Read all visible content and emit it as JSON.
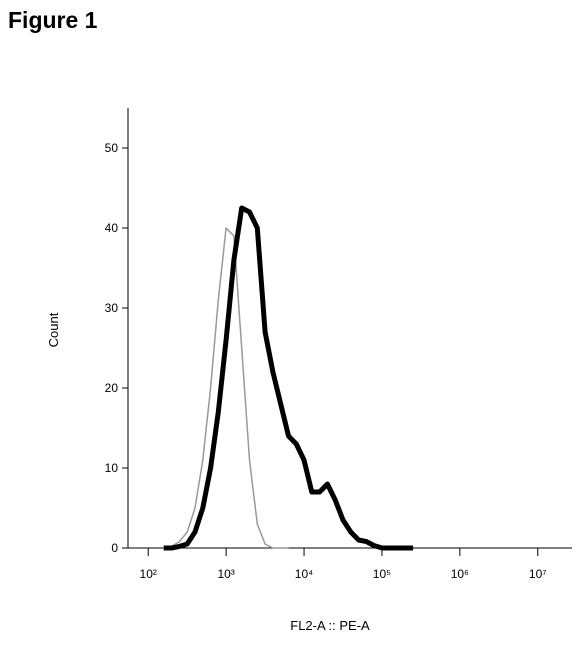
{
  "title": "Figure 1",
  "chart_data": {
    "type": "line",
    "xlabel": "FL2-A :: PE-A",
    "ylabel": "Count",
    "xscale": "log",
    "xlim": [
      55,
      27500000
    ],
    "ylim": [
      0,
      55
    ],
    "xticks": [
      {
        "value": 100,
        "label": "10²"
      },
      {
        "value": 1000,
        "label": "10³"
      },
      {
        "value": 10000,
        "label": "10⁴"
      },
      {
        "value": 100000,
        "label": "10⁵"
      },
      {
        "value": 1000000,
        "label": "10⁶"
      },
      {
        "value": 10000000,
        "label": "10⁷"
      }
    ],
    "yticks": [
      0,
      10,
      20,
      30,
      40,
      50
    ],
    "x": [
      158,
      200,
      251,
      316,
      398,
      501,
      631,
      794,
      1000,
      1259,
      1585,
      1995,
      2512,
      3162,
      3981,
      5012,
      6310,
      7943,
      10000,
      12589,
      15849,
      19953,
      25119,
      31623,
      39811,
      50119,
      63096,
      79433,
      100000,
      125893,
      158489,
      251189
    ],
    "series": [
      {
        "color": "#999999",
        "width": 1.5,
        "values": [
          0,
          0.2,
          0.8,
          2,
          5,
          11,
          20,
          31,
          40,
          39,
          25,
          11,
          3,
          0.5,
          0,
          0,
          0,
          null,
          null,
          null,
          null,
          null,
          null,
          null,
          null,
          null,
          null,
          null,
          null,
          null,
          null,
          null
        ]
      },
      {
        "color": "#000000",
        "width": 5,
        "values": [
          0,
          0,
          0.2,
          0.5,
          2,
          5,
          10,
          17,
          26,
          36,
          42.5,
          42,
          40,
          27,
          22,
          18,
          14,
          13,
          11,
          7,
          7,
          8,
          6,
          3.5,
          2,
          1,
          0.8,
          0.3,
          0,
          0,
          0,
          0
        ]
      }
    ]
  }
}
